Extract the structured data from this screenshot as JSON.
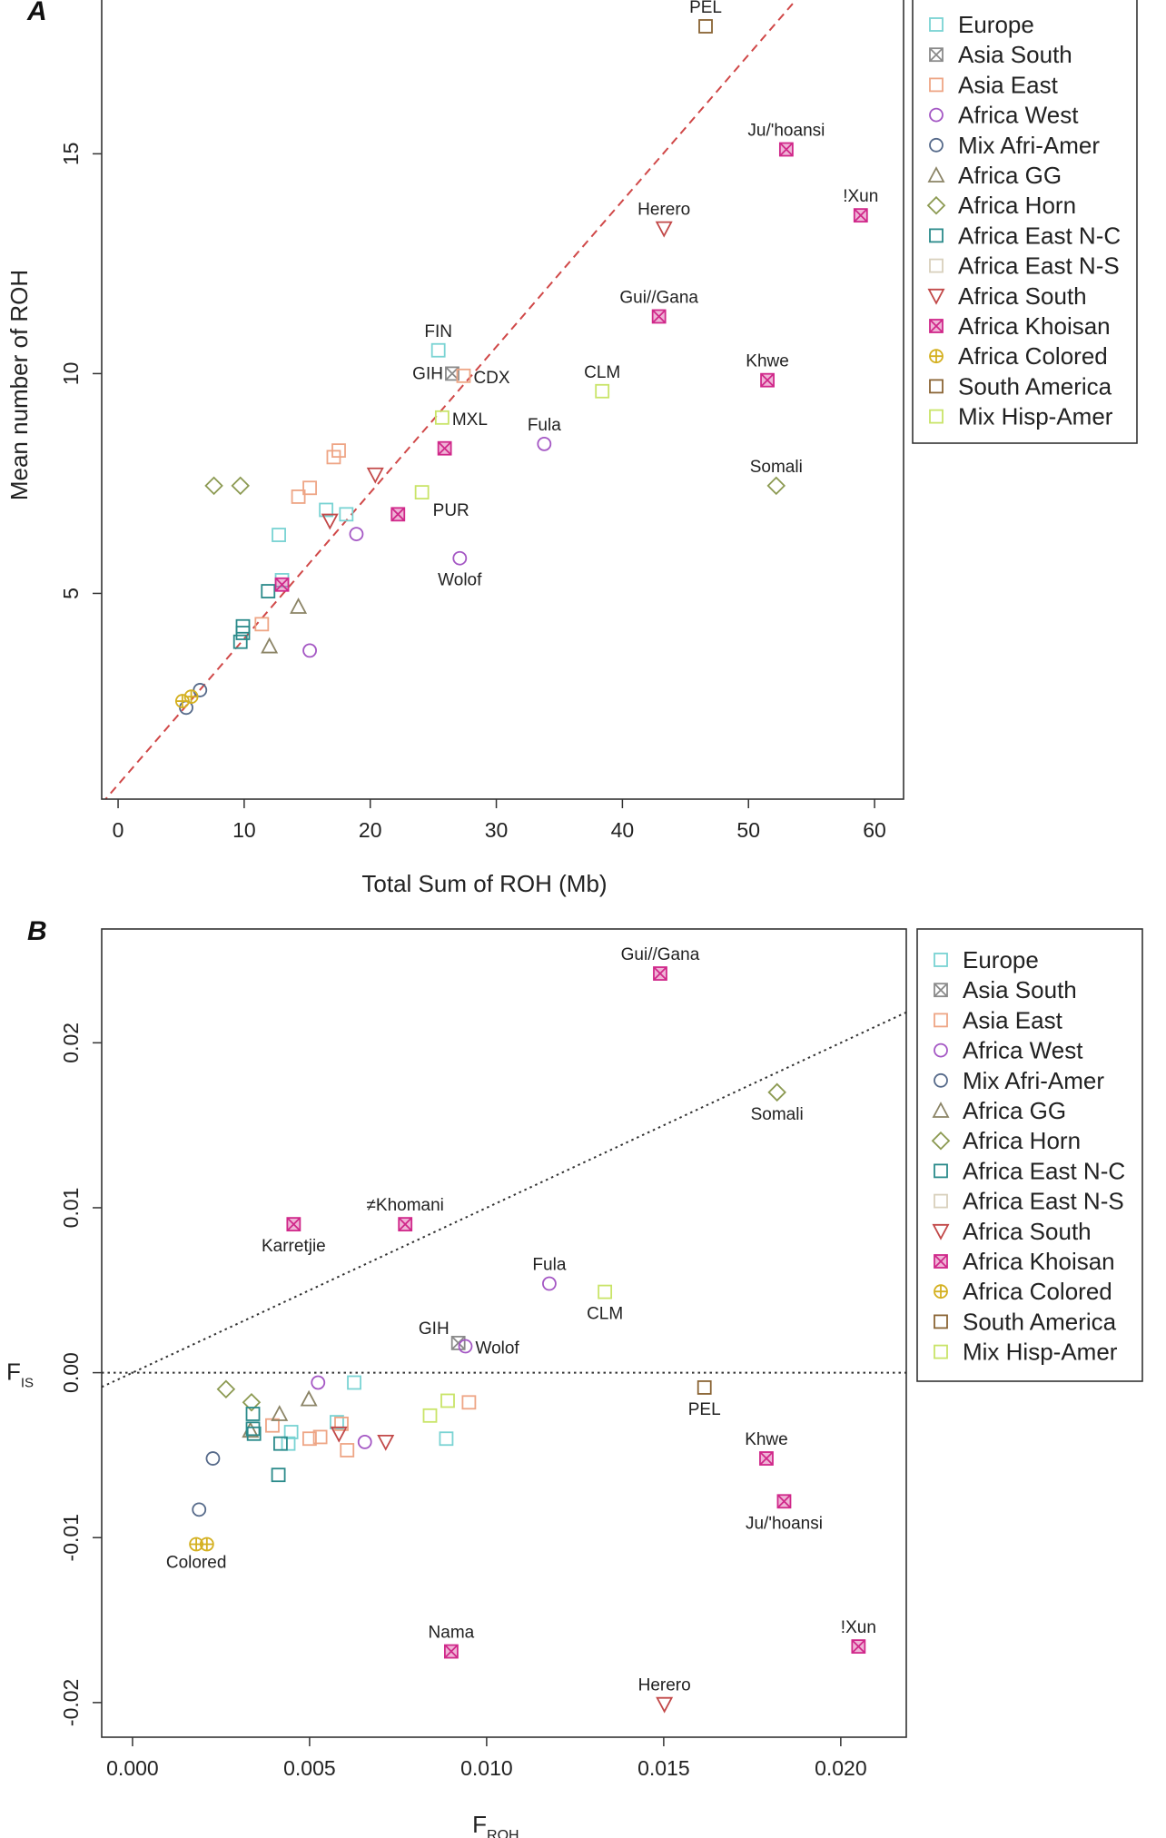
{
  "legend_entries": [
    {
      "name": "Europe",
      "shape": "square",
      "color": "#79d3d3"
    },
    {
      "name": "Asia South",
      "shape": "square-x",
      "color": "#8a8a8a"
    },
    {
      "name": "Asia East",
      "shape": "square",
      "color": "#eea585"
    },
    {
      "name": "Africa West",
      "shape": "circle",
      "color": "#a457c4"
    },
    {
      "name": "Mix Afri-Amer",
      "shape": "circle",
      "color": "#566a8a"
    },
    {
      "name": "Africa GG",
      "shape": "triangle",
      "color": "#8b8466"
    },
    {
      "name": "Africa Horn",
      "shape": "diamond",
      "color": "#8c9a52"
    },
    {
      "name": "Africa East N-C",
      "shape": "square",
      "color": "#2a8a8a"
    },
    {
      "name": "Africa East N-S",
      "shape": "square",
      "color": "#d8d0bc"
    },
    {
      "name": "Africa South",
      "shape": "triangle-down",
      "color": "#c24848"
    },
    {
      "name": "Africa Khoisan",
      "shape": "square-x-filled",
      "color": "#d0288a"
    },
    {
      "name": "Africa Colored",
      "shape": "circle-plus",
      "color": "#d4b020"
    },
    {
      "name": "South America",
      "shape": "square",
      "color": "#8a6434"
    },
    {
      "name": "Mix Hisp-Amer",
      "shape": "square",
      "color": "#c9e468"
    }
  ],
  "chart_data": [
    {
      "panel": "A",
      "type": "scatter",
      "xlabel": "Total Sum of ROH (Mb)",
      "ylabel": "Mean number of ROH",
      "xlim": [
        -1.3,
        62.3
      ],
      "ylim": [
        0.32,
        18.54
      ],
      "xticks": [
        "0",
        "10",
        "20",
        "30",
        "40",
        "50",
        "60"
      ],
      "yticks": [
        "5",
        "10",
        "15"
      ],
      "grid": false,
      "legend": "right",
      "reference_line": {
        "style": "dashed",
        "color": "#d04848",
        "slope": 0.332,
        "intercept": 0.65
      },
      "points": [
        {
          "g": "Europe",
          "x": 25.4,
          "y": 10.53,
          "label": "FIN",
          "pos": "above"
        },
        {
          "g": "Europe",
          "x": 12.75,
          "y": 6.33
        },
        {
          "g": "Europe",
          "x": 16.5,
          "y": 6.9
        },
        {
          "g": "Europe",
          "x": 18.1,
          "y": 6.8
        },
        {
          "g": "Europe",
          "x": 13.0,
          "y": 5.3
        },
        {
          "g": "Asia South",
          "x": 26.5,
          "y": 10.0,
          "label": "GIH",
          "pos": "left"
        },
        {
          "g": "Asia East",
          "x": 27.4,
          "y": 9.95,
          "label": "CDX",
          "pos": "right"
        },
        {
          "g": "Asia East",
          "x": 17.5,
          "y": 8.25
        },
        {
          "g": "Asia East",
          "x": 17.1,
          "y": 8.1
        },
        {
          "g": "Asia East",
          "x": 15.2,
          "y": 7.4
        },
        {
          "g": "Asia East",
          "x": 14.3,
          "y": 7.2
        },
        {
          "g": "Asia East",
          "x": 11.4,
          "y": 4.3
        },
        {
          "g": "Africa West",
          "x": 33.8,
          "y": 8.4,
          "label": "Fula",
          "pos": "above"
        },
        {
          "g": "Africa West",
          "x": 27.1,
          "y": 5.8,
          "label": "Wolof",
          "pos": "below"
        },
        {
          "g": "Africa West",
          "x": 18.9,
          "y": 6.35
        },
        {
          "g": "Africa West",
          "x": 15.2,
          "y": 3.7
        },
        {
          "g": "Mix Afri-Amer",
          "x": 5.4,
          "y": 2.4
        },
        {
          "g": "Mix Afri-Amer",
          "x": 6.5,
          "y": 2.8
        },
        {
          "g": "Africa GG",
          "x": 14.3,
          "y": 4.7
        },
        {
          "g": "Africa GG",
          "x": 12.0,
          "y": 3.8
        },
        {
          "g": "Africa Horn",
          "x": 7.6,
          "y": 7.45
        },
        {
          "g": "Africa Horn",
          "x": 9.7,
          "y": 7.45
        },
        {
          "g": "Africa Horn",
          "x": 52.2,
          "y": 7.45,
          "label": "Somali",
          "pos": "above"
        },
        {
          "g": "Africa East N-C",
          "x": 11.9,
          "y": 5.05
        },
        {
          "g": "Africa East N-C",
          "x": 9.9,
          "y": 4.25
        },
        {
          "g": "Africa East N-C",
          "x": 9.9,
          "y": 4.1
        },
        {
          "g": "Africa East N-C",
          "x": 9.7,
          "y": 3.9
        },
        {
          "g": "Africa South",
          "x": 43.3,
          "y": 13.3,
          "label": "Herero",
          "pos": "above"
        },
        {
          "g": "Africa South",
          "x": 20.4,
          "y": 7.7
        },
        {
          "g": "Africa South",
          "x": 16.8,
          "y": 6.65
        },
        {
          "g": "Africa Khoisan",
          "x": 53.0,
          "y": 15.1,
          "label": "Ju/'hoansi",
          "pos": "above"
        },
        {
          "g": "Africa Khoisan",
          "x": 58.9,
          "y": 13.6,
          "label": "!Xun",
          "pos": "above"
        },
        {
          "g": "Africa Khoisan",
          "x": 42.9,
          "y": 11.3,
          "label": "Gui//Gana",
          "pos": "above"
        },
        {
          "g": "Africa Khoisan",
          "x": 51.5,
          "y": 9.85,
          "label": "Khwe",
          "pos": "above"
        },
        {
          "g": "Africa Khoisan",
          "x": 25.9,
          "y": 8.3
        },
        {
          "g": "Africa Khoisan",
          "x": 22.2,
          "y": 6.8
        },
        {
          "g": "Africa Khoisan",
          "x": 13.0,
          "y": 5.2
        },
        {
          "g": "Africa Colored",
          "x": 5.1,
          "y": 2.55
        },
        {
          "g": "Africa Colored",
          "x": 5.8,
          "y": 2.65
        },
        {
          "g": "South America",
          "x": 46.6,
          "y": 17.9,
          "label": "PEL",
          "pos": "above"
        },
        {
          "g": "Mix Hisp-Amer",
          "x": 38.4,
          "y": 9.6,
          "label": "CLM",
          "pos": "above"
        },
        {
          "g": "Mix Hisp-Amer",
          "x": 25.7,
          "y": 9.0,
          "label": "MXL",
          "pos": "right"
        },
        {
          "g": "Mix Hisp-Amer",
          "x": 24.1,
          "y": 7.3,
          "label": "PUR",
          "pos": "belowright"
        }
      ]
    },
    {
      "panel": "B",
      "type": "scatter",
      "xlabel": "F",
      "xlabel_sub": "ROH",
      "ylabel": "F",
      "ylabel_sub": "IS",
      "xlim": [
        -0.00087,
        0.02185
      ],
      "ylim": [
        -0.0221,
        0.0269
      ],
      "xticks": [
        "0.000",
        "0.005",
        "0.010",
        "0.015",
        "0.020"
      ],
      "yticks": [
        "-0.02",
        "-0.01",
        "0.00",
        "0.01",
        "0.02"
      ],
      "grid": false,
      "legend": "right",
      "reference_lines": [
        {
          "style": "dotted",
          "color": "#333333",
          "slope": 1.0,
          "intercept": 0.0
        },
        {
          "style": "dotted",
          "color": "#333333",
          "slope": 0.0,
          "intercept": 0.0
        }
      ],
      "points": [
        {
          "g": "Europe",
          "x": 0.00626,
          "y": -0.0006
        },
        {
          "g": "Europe",
          "x": 0.00577,
          "y": -0.003
        },
        {
          "g": "Europe",
          "x": 0.00448,
          "y": -0.0036
        },
        {
          "g": "Europe",
          "x": 0.0044,
          "y": -0.0043
        },
        {
          "g": "Europe",
          "x": 0.00886,
          "y": -0.004
        },
        {
          "g": "Asia South",
          "x": 0.0092,
          "y": 0.0018,
          "label": "GIH",
          "pos": "aboveleft"
        },
        {
          "g": "Asia East",
          "x": 0.00395,
          "y": -0.0032
        },
        {
          "g": "Asia East",
          "x": 0.005,
          "y": -0.004
        },
        {
          "g": "Asia East",
          "x": 0.0053,
          "y": -0.0039
        },
        {
          "g": "Asia East",
          "x": 0.0059,
          "y": -0.0031
        },
        {
          "g": "Asia East",
          "x": 0.00606,
          "y": -0.0047
        },
        {
          "g": "Asia East",
          "x": 0.0095,
          "y": -0.0018
        },
        {
          "g": "Africa West",
          "x": 0.01177,
          "y": 0.0054,
          "label": "Fula",
          "pos": "above"
        },
        {
          "g": "Africa West",
          "x": 0.0094,
          "y": 0.0016,
          "label": "Wolof",
          "pos": "right"
        },
        {
          "g": "Africa West",
          "x": 0.00524,
          "y": -0.0006
        },
        {
          "g": "Africa West",
          "x": 0.00656,
          "y": -0.0042
        },
        {
          "g": "Mix Afri-Amer",
          "x": 0.00227,
          "y": -0.0052
        },
        {
          "g": "Mix Afri-Amer",
          "x": 0.00188,
          "y": -0.0083
        },
        {
          "g": "Africa GG",
          "x": 0.00498,
          "y": -0.0016
        },
        {
          "g": "Africa GG",
          "x": 0.00415,
          "y": -0.0025
        },
        {
          "g": "Africa GG",
          "x": 0.00333,
          "y": -0.0035
        },
        {
          "g": "Africa Horn",
          "x": 0.00264,
          "y": -0.001
        },
        {
          "g": "Africa Horn",
          "x": 0.00336,
          "y": -0.0018
        },
        {
          "g": "Africa Horn",
          "x": 0.0182,
          "y": 0.017,
          "label": "Somali",
          "pos": "below"
        },
        {
          "g": "Africa East N-C",
          "x": 0.0034,
          "y": -0.0025
        },
        {
          "g": "Africa East N-C",
          "x": 0.0034,
          "y": -0.0034
        },
        {
          "g": "Africa East N-C",
          "x": 0.00343,
          "y": -0.0037
        },
        {
          "g": "Africa East N-C",
          "x": 0.00418,
          "y": -0.0043
        },
        {
          "g": "Africa East N-C",
          "x": 0.00412,
          "y": -0.0062
        },
        {
          "g": "Africa South",
          "x": 0.01502,
          "y": -0.0201,
          "label": "Herero",
          "pos": "above"
        },
        {
          "g": "Africa South",
          "x": 0.00583,
          "y": -0.0037
        },
        {
          "g": "Africa South",
          "x": 0.00715,
          "y": -0.0042
        },
        {
          "g": "Africa Khoisan",
          "x": 0.0149,
          "y": 0.0242,
          "label": "Gui//Gana",
          "pos": "above"
        },
        {
          "g": "Africa Khoisan",
          "x": 0.00455,
          "y": 0.009,
          "label": "Karretjie",
          "pos": "below"
        },
        {
          "g": "Africa Khoisan",
          "x": 0.0077,
          "y": 0.009,
          "label": "≠Khomani",
          "pos": "above"
        },
        {
          "g": "Africa Khoisan",
          "x": 0.0179,
          "y": -0.0052,
          "label": "Khwe",
          "pos": "above"
        },
        {
          "g": "Africa Khoisan",
          "x": 0.0184,
          "y": -0.0078,
          "label": "Ju/'hoansi",
          "pos": "below"
        },
        {
          "g": "Africa Khoisan",
          "x": 0.009,
          "y": -0.0169,
          "label": "Nama",
          "pos": "above"
        },
        {
          "g": "Africa Khoisan",
          "x": 0.0205,
          "y": -0.0166,
          "label": "!Xun",
          "pos": "above"
        },
        {
          "g": "Africa Colored",
          "x": 0.0018,
          "y": -0.0104,
          "label": "Colored",
          "pos": "belowright"
        },
        {
          "g": "Africa Colored",
          "x": 0.0021,
          "y": -0.0104
        },
        {
          "g": "South America",
          "x": 0.01615,
          "y": -0.0009,
          "label": "PEL",
          "pos": "below"
        },
        {
          "g": "Mix Hisp-Amer",
          "x": 0.01334,
          "y": 0.0049,
          "label": "CLM",
          "pos": "below"
        },
        {
          "g": "Mix Hisp-Amer",
          "x": 0.0089,
          "y": -0.0017
        },
        {
          "g": "Mix Hisp-Amer",
          "x": 0.0084,
          "y": -0.0026
        }
      ]
    }
  ]
}
